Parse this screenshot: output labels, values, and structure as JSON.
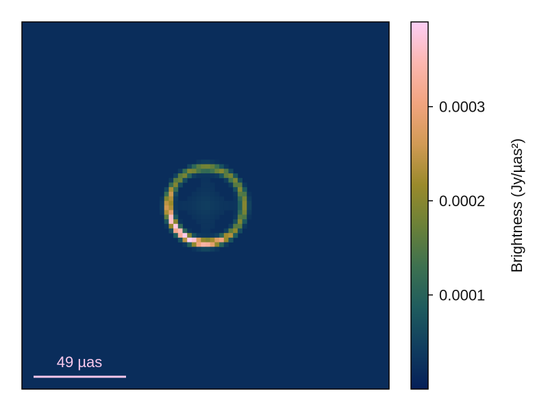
{
  "chart_data": {
    "type": "heatmap",
    "title": "",
    "description": "Ring-shaped brightness map on a dark background",
    "image": {
      "background_value": 2e-05,
      "ring": {
        "shape": "ring",
        "peak_value": 0.00039,
        "bright_region": "lower-left arc",
        "dim_region": "upper arc"
      }
    },
    "scalebar": {
      "label": "49 µas",
      "color": "#f7c8ec"
    },
    "colorbar": {
      "label": "Brightness (Jy/µas²)",
      "ticks": [
        0.0001,
        0.0002,
        0.0003
      ],
      "tick_labels": [
        "0.0001",
        "0.0002",
        "0.0003"
      ],
      "range": [
        0.0,
        0.00039
      ],
      "colormap": "batlow",
      "stops": [
        "#051f58",
        "#103d5f",
        "#1f5c5e",
        "#3d7150",
        "#6b8138",
        "#9a8a2b",
        "#d19a55",
        "#f2a47f",
        "#fcb7b0",
        "#fccef5"
      ]
    }
  }
}
